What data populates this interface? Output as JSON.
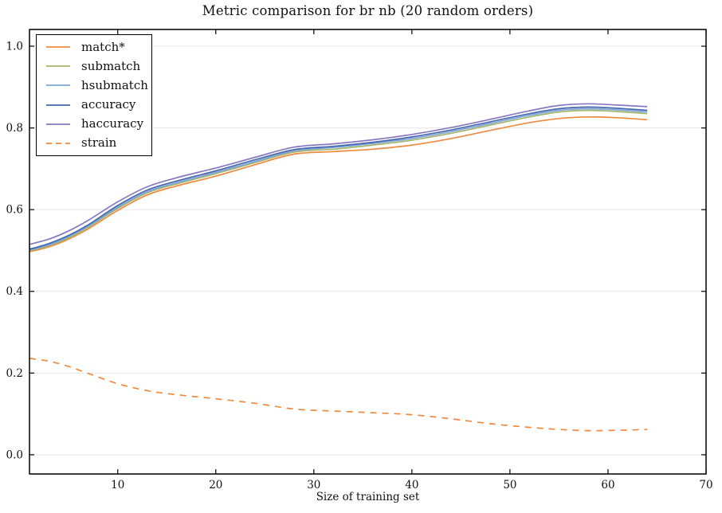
{
  "chart_data": {
    "type": "line",
    "title": "Metric comparison for br nb (20 random orders)",
    "xlabel": "Size of training set",
    "ylabel": "",
    "xlim": [
      1,
      70
    ],
    "ylim": [
      -0.047,
      1.041
    ],
    "xticks": {
      "values": [
        10,
        20,
        30,
        40,
        50,
        60,
        70
      ],
      "labels": [
        "10",
        "20",
        "30",
        "40",
        "50",
        "60",
        "70"
      ]
    },
    "yticks": {
      "values": [
        0.0,
        0.2,
        0.4,
        0.6,
        0.8,
        1.0
      ],
      "labels": [
        "0.0",
        "0.2",
        "0.4",
        "0.6",
        "0.8",
        "1.0"
      ]
    },
    "grid": "horizontal",
    "grid_color": "#e6e6e6",
    "frame_color": "#000000",
    "legend_position": "upper-left",
    "x": [
      1,
      3,
      5,
      7,
      10,
      13,
      16,
      20,
      24,
      28,
      32,
      36,
      40,
      44,
      48,
      52,
      55,
      58,
      61,
      64
    ],
    "series": [
      {
        "name": "match*",
        "color": "#ee8a3f",
        "style": "solid",
        "values": [
          0.497,
          0.509,
          0.528,
          0.553,
          0.598,
          0.636,
          0.658,
          0.682,
          0.71,
          0.736,
          0.742,
          0.748,
          0.758,
          0.774,
          0.794,
          0.813,
          0.823,
          0.827,
          0.825,
          0.82
        ]
      },
      {
        "name": "submatch",
        "color": "#a5b56c",
        "style": "solid",
        "values": [
          0.499,
          0.512,
          0.531,
          0.557,
          0.603,
          0.641,
          0.663,
          0.688,
          0.715,
          0.741,
          0.748,
          0.758,
          0.77,
          0.787,
          0.807,
          0.827,
          0.839,
          0.843,
          0.84,
          0.835
        ]
      },
      {
        "name": "hsubmatch",
        "color": "#7fa5d6",
        "style": "solid",
        "values": [
          0.501,
          0.514,
          0.534,
          0.56,
          0.606,
          0.644,
          0.666,
          0.691,
          0.718,
          0.744,
          0.752,
          0.762,
          0.774,
          0.791,
          0.811,
          0.831,
          0.843,
          0.847,
          0.844,
          0.839
        ]
      },
      {
        "name": "accuracy",
        "color": "#4467af",
        "style": "solid",
        "values": [
          0.503,
          0.517,
          0.537,
          0.563,
          0.61,
          0.648,
          0.67,
          0.695,
          0.722,
          0.747,
          0.755,
          0.765,
          0.778,
          0.795,
          0.815,
          0.835,
          0.847,
          0.851,
          0.848,
          0.843
        ]
      },
      {
        "name": "haccuracy",
        "color": "#8678c2",
        "style": "solid",
        "values": [
          0.515,
          0.528,
          0.548,
          0.574,
          0.619,
          0.656,
          0.678,
          0.702,
          0.728,
          0.753,
          0.761,
          0.771,
          0.784,
          0.801,
          0.821,
          0.842,
          0.855,
          0.859,
          0.856,
          0.852
        ]
      },
      {
        "name": "strain",
        "color": "#ee8a3f",
        "style": "dashed",
        "values": [
          0.236,
          0.229,
          0.216,
          0.199,
          0.174,
          0.157,
          0.147,
          0.137,
          0.126,
          0.112,
          0.107,
          0.103,
          0.098,
          0.088,
          0.076,
          0.067,
          0.062,
          0.059,
          0.06,
          0.062
        ]
      }
    ]
  }
}
